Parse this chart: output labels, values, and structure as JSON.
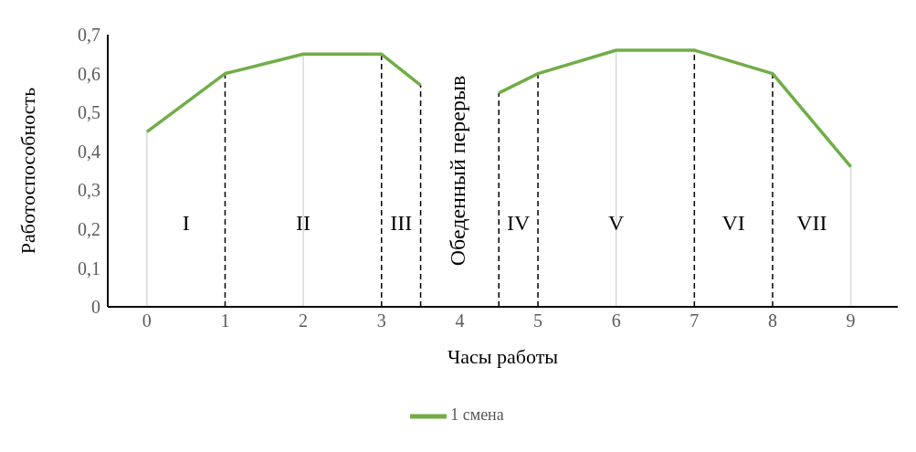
{
  "chart_data": {
    "type": "line",
    "xlabel": "Часы работы",
    "ylabel": "Работоспособность",
    "x": [
      0,
      1,
      2,
      3,
      3.5,
      4,
      4.5,
      5,
      6,
      7,
      8,
      9
    ],
    "series": [
      {
        "name": "1 смена",
        "color": "#70ad47",
        "values": [
          0.45,
          0.6,
          0.65,
          0.65,
          0.57,
          null,
          0.55,
          0.6,
          0.66,
          0.66,
          0.6,
          0.36
        ]
      }
    ],
    "xlim": [
      -0.5,
      9.6
    ],
    "xticks": [
      0,
      1,
      2,
      3,
      4,
      5,
      6,
      7,
      8,
      9
    ],
    "ylim": [
      0,
      0.7
    ],
    "yticks": [
      0,
      {
        "value": 0.1,
        "label": "0,1"
      },
      {
        "value": 0.2,
        "label": "0,2"
      },
      {
        "value": 0.3,
        "label": "0,3"
      },
      {
        "value": 0.4,
        "label": "0,4"
      },
      {
        "value": 0.5,
        "label": "0,5"
      },
      {
        "value": 0.6,
        "label": "0,6"
      },
      {
        "value": 0.7,
        "label": "0,7"
      }
    ],
    "ref_lines": [
      {
        "axis": "x",
        "value": 0,
        "color": "#d9d9d9",
        "line_style": "solid"
      },
      {
        "axis": "x",
        "value": 1,
        "color": "#000000",
        "line_style": "dashed"
      },
      {
        "axis": "x",
        "value": 2,
        "color": "#d9d9d9",
        "line_style": "solid"
      },
      {
        "axis": "x",
        "value": 3,
        "color": "#000000",
        "line_style": "dashed"
      },
      {
        "axis": "x",
        "value": 3.5,
        "color": "#000000",
        "line_style": "dashed"
      },
      {
        "axis": "x",
        "value": 4.5,
        "color": "#000000",
        "line_style": "dashed"
      },
      {
        "axis": "x",
        "value": 5,
        "color": "#000000",
        "line_style": "dashed"
      },
      {
        "axis": "x",
        "value": 6,
        "color": "#d9d9d9",
        "line_style": "solid"
      },
      {
        "axis": "x",
        "value": 7,
        "color": "#000000",
        "line_style": "dashed"
      },
      {
        "axis": "x",
        "value": 8,
        "color": "#000000",
        "line_style": "dashed"
      },
      {
        "axis": "x",
        "value": 9,
        "color": "#d9d9d9",
        "line_style": "solid"
      }
    ],
    "annotations": [
      "I",
      "II",
      "III",
      "Обеденный перерыв",
      "IV",
      "V",
      "VI",
      "VII"
    ],
    "grid": false,
    "legend": "bottom",
    "marker": "none",
    "line_style": "solid"
  }
}
